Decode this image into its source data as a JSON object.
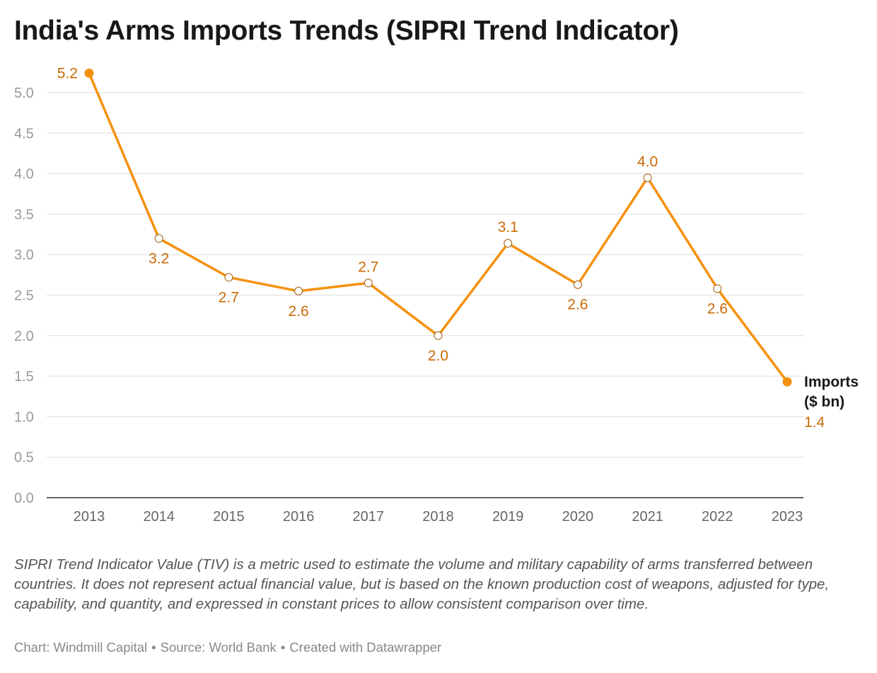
{
  "title": "India's Arms Imports Trends (SIPRI Trend Indicator)",
  "notes": "SIPRI Trend Indicator Value (TIV) is a metric used to estimate the volume and military capability of arms transferred between countries. It does not represent actual financial value, but is based on the known production cost of weapons, adjusted for type, capability, and quantity, and expressed in constant prices to allow consistent comparison over time.",
  "footer": {
    "chart_credit": "Chart: Windmill Capital",
    "source": "Source: World Bank",
    "tool": "Created with Datawrapper",
    "separator": "•"
  },
  "chart_data": {
    "type": "line",
    "title": "India's Arms Imports Trends (SIPRI Trend Indicator)",
    "xlabel": "",
    "ylabel": "",
    "x": [
      "2013",
      "2014",
      "2015",
      "2016",
      "2017",
      "2018",
      "2019",
      "2020",
      "2021",
      "2022",
      "2023"
    ],
    "series": [
      {
        "name": "Imports ($ bn)",
        "name_lines": [
          "Imports",
          "($ bn)"
        ],
        "values": [
          5.24,
          3.2,
          2.72,
          2.55,
          2.65,
          2.0,
          3.14,
          2.63,
          3.95,
          2.58,
          1.43
        ],
        "labels": [
          "5.2",
          "3.2",
          "2.7",
          "2.6",
          "2.7",
          "2.0",
          "3.1",
          "2.6",
          "4.0",
          "2.6",
          "1.4"
        ],
        "color": "#f5910f",
        "label_color": "#c96a06"
      }
    ],
    "ylim": [
      0,
      5.4
    ],
    "yticks": [
      "0.0",
      "0.5",
      "1.0",
      "1.5",
      "2.0",
      "2.5",
      "3.0",
      "3.5",
      "4.0",
      "4.5",
      "5.0"
    ],
    "grid": true,
    "legend": "inline-end"
  }
}
